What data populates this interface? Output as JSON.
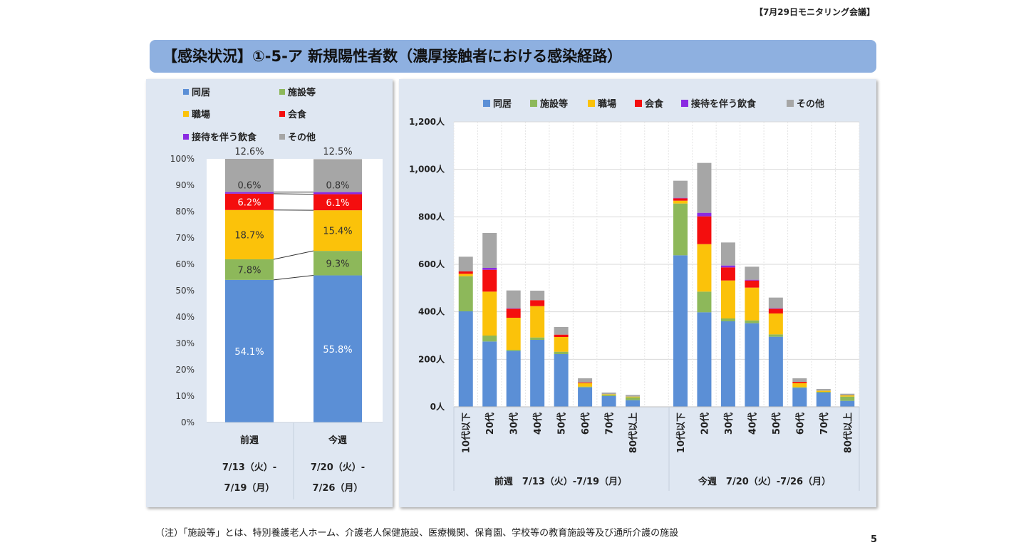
{
  "header": {
    "meeting_label": "【7月29日モニタリング会議】"
  },
  "title": "【感染状況】①-5-ア 新規陽性者数（濃厚接触者における感染経路）",
  "colors": {
    "同居": "#5b8fd6",
    "施設等": "#8db85a",
    "職場": "#fbc20a",
    "会食": "#f40e0e",
    "接待を伴う飲食": "#8a2be2",
    "その他": "#a6a6a6"
  },
  "chart_data": [
    {
      "type": "bar",
      "stacked": true,
      "normalized": true,
      "title": "",
      "legend": [
        "同居",
        "施設等",
        "職場",
        "会食",
        "接待を伴う飲食",
        "その他"
      ],
      "legend_position": "top",
      "y_ticks": [
        "0%",
        "10%",
        "20%",
        "30%",
        "40%",
        "50%",
        "60%",
        "70%",
        "80%",
        "90%",
        "100%"
      ],
      "ylim": [
        0,
        100
      ],
      "categories": [
        {
          "label": "前週",
          "date_line1": "7/13（火）-",
          "date_line2": "7/19（月）"
        },
        {
          "label": "今週",
          "date_line1": "7/20（火）-",
          "date_line2": "7/26（月）"
        }
      ],
      "series": [
        {
          "name": "同居",
          "values": [
            54.1,
            55.8
          ],
          "labels": [
            "54.1%",
            "55.8%"
          ]
        },
        {
          "name": "施設等",
          "values": [
            7.8,
            9.3
          ],
          "labels": [
            "7.8%",
            "9.3%"
          ]
        },
        {
          "name": "職場",
          "values": [
            18.7,
            15.4
          ],
          "labels": [
            "18.7%",
            "15.4%"
          ]
        },
        {
          "name": "会食",
          "values": [
            6.2,
            6.1
          ],
          "labels": [
            "6.2%",
            "6.1%"
          ]
        },
        {
          "name": "接待を伴う飲食",
          "values": [
            0.6,
            0.8
          ],
          "labels": [
            "0.6%",
            "0.8%"
          ]
        },
        {
          "name": "その他",
          "values": [
            12.6,
            12.5
          ],
          "labels": [
            "12.6%",
            "12.5%"
          ]
        }
      ]
    },
    {
      "type": "bar",
      "stacked": true,
      "title": "",
      "legend": [
        "同居",
        "施設等",
        "職場",
        "会食",
        "接待を伴う飲食",
        "その他"
      ],
      "legend_position": "top",
      "y_ticks": [
        "0人",
        "200人",
        "400人",
        "600人",
        "800人",
        "1,000人",
        "1,200人"
      ],
      "ylim": [
        0,
        1200
      ],
      "categories": [
        "10代以下",
        "20代",
        "30代",
        "40代",
        "50代",
        "60代",
        "70代",
        "80代以上"
      ],
      "groups": [
        {
          "label": "前週　7/13（火）-7/19（月）",
          "series": [
            {
              "name": "同居",
              "values": [
                402,
                275,
                235,
                282,
                222,
                82,
                45,
                28
              ]
            },
            {
              "name": "施設等",
              "values": [
                148,
                25,
                5,
                10,
                10,
                3,
                5,
                12
              ]
            },
            {
              "name": "職場",
              "values": [
                10,
                185,
                135,
                132,
                62,
                15,
                3,
                3
              ]
            },
            {
              "name": "会食",
              "values": [
                10,
                92,
                38,
                25,
                10,
                3,
                0,
                0
              ]
            },
            {
              "name": "接待を伴う飲食",
              "values": [
                0,
                8,
                2,
                0,
                0,
                0,
                0,
                0
              ]
            },
            {
              "name": "その他",
              "values": [
                62,
                147,
                75,
                40,
                32,
                17,
                7,
                7
              ]
            }
          ]
        },
        {
          "label": "今週　7/20（火）-7/26（月）",
          "series": [
            {
              "name": "同居",
              "values": [
                638,
                398,
                360,
                352,
                295,
                80,
                60,
                25
              ]
            },
            {
              "name": "施設等",
              "values": [
                218,
                87,
                12,
                12,
                10,
                3,
                3,
                18
              ]
            },
            {
              "name": "職場",
              "values": [
                12,
                200,
                160,
                138,
                88,
                17,
                5,
                5
              ]
            },
            {
              "name": "会食",
              "values": [
                10,
                117,
                55,
                30,
                20,
                5,
                0,
                0
              ]
            },
            {
              "name": "接待を伴う飲食",
              "values": [
                2,
                15,
                8,
                3,
                2,
                0,
                0,
                0
              ]
            },
            {
              "name": "その他",
              "values": [
                72,
                210,
                97,
                55,
                45,
                15,
                7,
                7
              ]
            }
          ]
        }
      ]
    }
  ],
  "footnote": "（注）「施設等」とは、特別養護老人ホーム、介護老人保健施設、医療機関、保育園、学校等の教育施設等及び通所介護の施設",
  "page_number": "5"
}
